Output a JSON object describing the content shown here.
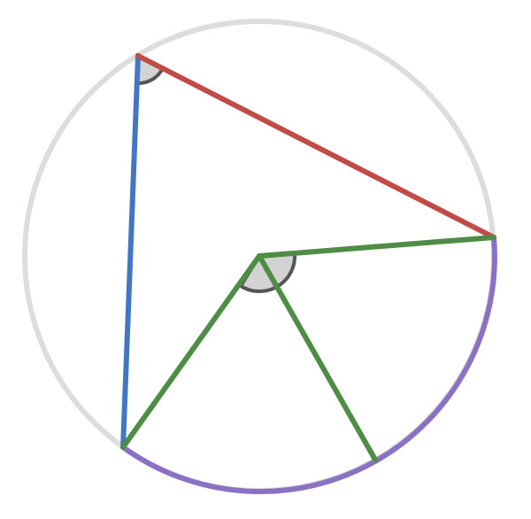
{
  "diagram": {
    "kind": "inscribed-angle-theorem",
    "colors": {
      "circle": "#dddddd",
      "arc": "#8b71c3",
      "chord_ab": "#4477c3",
      "chord_ac": "#c04c4a",
      "radius": "#4f8c45",
      "angle_fill": "#d3d3d3",
      "angle_stroke": "#555555"
    },
    "labels": {}
  }
}
